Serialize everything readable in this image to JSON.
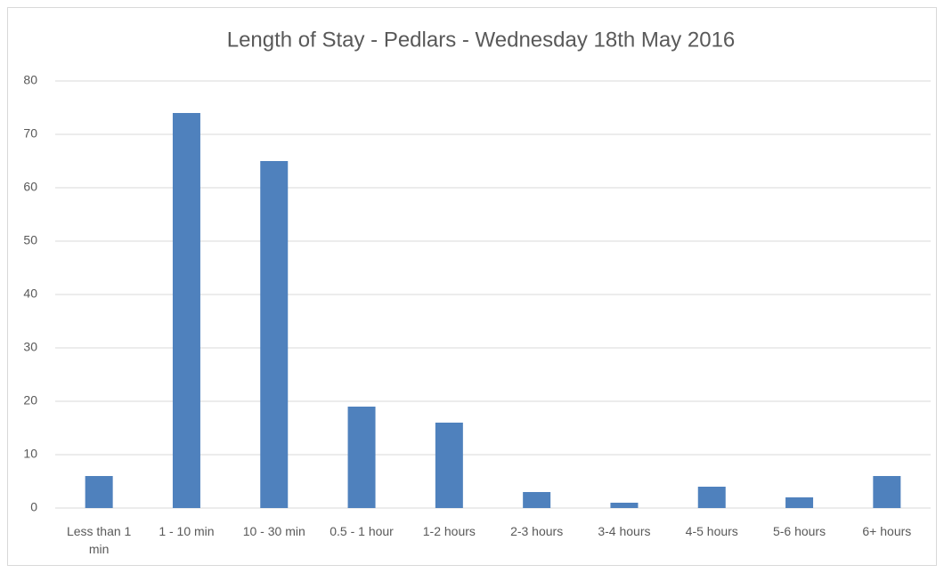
{
  "chart_data": {
    "type": "bar",
    "title": "Length of Stay - Pedlars - Wednesday 18th May 2016",
    "categories": [
      "Less than 1 min",
      "1 - 10 min",
      "10 - 30 min",
      "0.5 - 1 hour",
      "1-2 hours",
      "2-3 hours",
      "3-4 hours",
      "4-5 hours",
      "5-6 hours",
      "6+ hours"
    ],
    "values": [
      6,
      74,
      65,
      19,
      16,
      3,
      1,
      4,
      2,
      6
    ],
    "color": "#4f81bd",
    "ylim": [
      0,
      80
    ],
    "yticks": [
      0,
      10,
      20,
      30,
      40,
      50,
      60,
      70,
      80
    ],
    "grid": true
  }
}
